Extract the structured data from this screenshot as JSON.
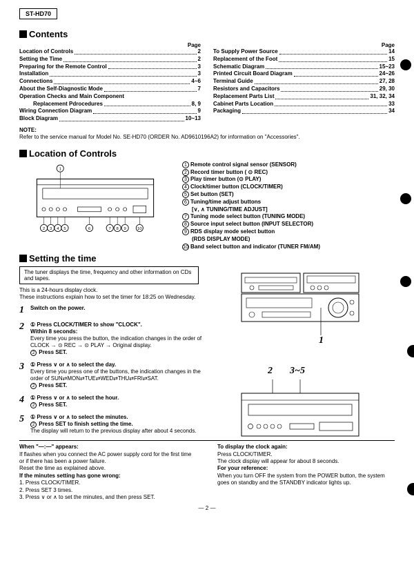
{
  "model": "ST-HD70",
  "contents_title": "Contents",
  "page_label": "Page",
  "toc_left": [
    {
      "t": "Location of Controls",
      "p": "2"
    },
    {
      "t": "Setting the Time",
      "p": "2"
    },
    {
      "t": "Preparing for the Remote Control",
      "p": "3"
    },
    {
      "t": "Installation",
      "p": "3"
    },
    {
      "t": "Connections",
      "p": "4~6"
    },
    {
      "t": "About the Self-Diagnostic Mode",
      "p": "7"
    },
    {
      "t": "Operation Checks and Main Component",
      "p": ""
    },
    {
      "t": "Replacement Pdrocedures",
      "p": "8, 9",
      "indent": true
    },
    {
      "t": "Wiring Connection Diagram",
      "p": "9"
    },
    {
      "t": "Block Diagram",
      "p": "10~13"
    }
  ],
  "toc_right": [
    {
      "t": "To Supply Power Source",
      "p": "14"
    },
    {
      "t": "Replacement of the Foot",
      "p": "15"
    },
    {
      "t": "Schematic Diagram",
      "p": "15~23"
    },
    {
      "t": "Printed Circuit Board Diagram",
      "p": "24~26"
    },
    {
      "t": "Terminal Guide",
      "p": "27, 28"
    },
    {
      "t": "Resistors and Capacitors",
      "p": "29, 30"
    },
    {
      "t": "Replacement Parts List",
      "p": "31, 32, 34"
    },
    {
      "t": "Cabinet Parts Location",
      "p": "33"
    },
    {
      "t": "Packaging",
      "p": "34"
    }
  ],
  "note_label": "NOTE:",
  "note_text": "Refer to the service manual for Model No. SE-HD70 (ORDER No. AD9610196A2) for information on \"Accessories\".",
  "loc_title": "Location of Controls",
  "controls": [
    "Remote control signal sensor (SENSOR)",
    "Record timer button ( ⊙ REC)",
    "Play timer button (⊙ PLAY)",
    "Clock/timer button (CLOCK/TIMER)",
    "Set button (SET)",
    "Tuning/time adjust buttons",
    "    [∨, ∧ TUNING/TIME ADJUST]",
    "Tuning mode select button (TUNING MODE)",
    "Source input select button (INPUT SELECTOR)",
    "RDS display mode select button",
    "    (RDS DISPLAY MODE)",
    "Band select button and indicator (TUNER FM/AM)"
  ],
  "control_nums": [
    "1",
    "2",
    "3",
    "4",
    "5",
    "6",
    "",
    "7",
    "8",
    "9",
    "",
    "10"
  ],
  "setting_title": "Setting the time",
  "set_box": "The tuner displays the time, frequency and other information on CDs and tapes.",
  "set_intro1": "This is a 24-hours display clock.",
  "set_intro2": "These instructions explain how to set the timer for 18:25 on Wednesday.",
  "steps": [
    {
      "n": "1",
      "body_b": "Switch on the power.",
      "body": ""
    },
    {
      "n": "2",
      "body_b": "① Press CLOCK/TIMER to show \"CLOCK\".",
      "body": "<b>Within 8 seconds:</b><br>Every time you press the button, the indication changes in the order of CLOCK → ⊙ REC → ⊙ PLAY → Original display.<br><span class='n'>2</span> <b>Press SET.</b>"
    },
    {
      "n": "3",
      "body_b": "① Press ∨ or ∧ to select the day.",
      "body": "Every time you press one of the buttons, the indication changes in the order of SUN⇄MON⇄TUE⇄WED⇄THU⇄FRI⇄SAT.<br><span class='n'>2</span> <b>Press SET.</b>"
    },
    {
      "n": "4",
      "body_b": "① Press ∨ or ∧ to select the hour.",
      "body": "<span class='n'>2</span> <b>Press SET.</b>"
    },
    {
      "n": "5",
      "body_b": "① Press ∨ or ∧ to select the minutes.",
      "body": "<span class='n'>2</span> <b>Press SET to finish setting the time.</b><br>The display will return to the previous display after about 4 seconds."
    }
  ],
  "when_title": "When \"—:—\" appears:",
  "when_body": "If flashes when you connect the AC power supply cord for the first time or if there has been a power failure.<br>Reset the time as explained above.",
  "wrong_title": "If the minutes setting has gone wrong:",
  "wrong_body": "1.  Press CLOCK/TIMER.<br>2.  Press SET 3 times.<br>3.  Press ∨ or ∧ to set the minutes, and then press SET.",
  "disp_title": "To display the clock again:",
  "disp_body": "Press CLOCK/TIMER.<br>The clock display will appear for about  8 seconds.",
  "ref_title": "For your reference:",
  "ref_body": "When you turn OFF the system from the POWER button, the system goes on standby and the STANDBY indicator lights up.",
  "pagenum": "— 2 —",
  "fig_labels": {
    "one": "1",
    "two": "2",
    "three": "3~5"
  }
}
